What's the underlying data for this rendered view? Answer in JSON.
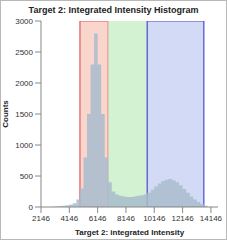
{
  "chart_data": {
    "type": "histogram",
    "title": "Target 2: Integrated Intensity Histogram",
    "x_label": "Target 2: integrated Intensity",
    "y_label": "Counts",
    "bins": [
      2896,
      3146,
      3396,
      3646,
      3896,
      4146,
      4396,
      4646,
      4896,
      5146,
      5396,
      5646,
      5896,
      6146,
      6396,
      6646,
      6896,
      7146,
      7396,
      7646,
      7896,
      8146,
      8396,
      8646,
      8896,
      9146,
      9396,
      9646,
      9896,
      10146,
      10396,
      10646,
      10896,
      11146,
      11396,
      11646,
      11896,
      12146,
      12396,
      12646,
      12896,
      13146,
      13396,
      13646,
      13896
    ],
    "counts": [
      5,
      10,
      15,
      20,
      30,
      40,
      60,
      120,
      300,
      800,
      1500,
      2300,
      2800,
      2300,
      1500,
      800,
      400,
      250,
      200,
      180,
      170,
      160,
      160,
      170,
      180,
      190,
      200,
      230,
      280,
      330,
      380,
      420,
      440,
      450,
      430,
      400,
      350,
      290,
      230,
      170,
      120,
      80,
      50,
      20
    ],
    "color": "#a8bccc",
    "regions": [
      {
        "range": [
          4896,
          6896
        ],
        "color": "#f9d5cc"
      },
      {
        "range": [
          6896,
          9646
        ],
        "color": "#d2f2d2"
      },
      {
        "range": [
          9646,
          13646
        ],
        "color": "#d3daf6"
      }
    ],
    "xlim": [
      2146,
      14646
    ],
    "xticks": [
      2146,
      4146,
      6146,
      8146,
      10146,
      12146,
      14146
    ],
    "ylim": [
      0,
      3000
    ],
    "yticks": [
      0,
      500,
      1000,
      1500,
      2000,
      2500,
      3000
    ],
    "grid": false
  }
}
